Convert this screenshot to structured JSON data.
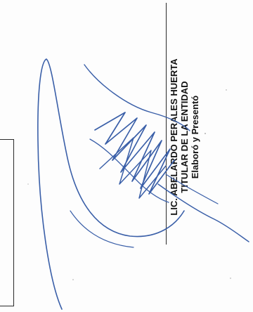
{
  "signature_block": {
    "name_line": "LIC. ABELARDO PERALES HUERTA",
    "title_line": "TITULAR DE LA ENTIDAD",
    "role_line": "Elaboró y Presentó"
  },
  "colors": {
    "ink": "#111111",
    "signature_ink": "#3a5fa8",
    "rule": "#2a2a2a"
  }
}
